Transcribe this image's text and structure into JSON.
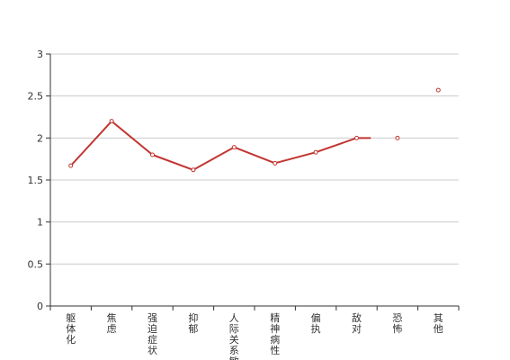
{
  "chart_data": {
    "type": "line",
    "categories": [
      "躯体化",
      "焦虑",
      "强迫症状",
      "抑郁",
      "人际关系敏感",
      "精神病性",
      "偏执",
      "敌对",
      "恐怖",
      "其他"
    ],
    "series": [
      {
        "values": [
          1.67,
          2.2,
          1.8,
          1.62,
          1.89,
          1.7,
          1.83,
          2.0,
          2.0,
          2.57
        ]
      }
    ],
    "ylim": [
      0,
      3
    ],
    "yticks": [
      0,
      0.5,
      1,
      1.5,
      2,
      2.5,
      3
    ],
    "ytick_labels": [
      "0",
      "0.5",
      "1",
      "1.5",
      "2",
      "2.5",
      "3"
    ],
    "grid": "horizontal",
    "line_break_after_index": 7,
    "colors": {
      "line": "#c23531",
      "grid": "#cccccc",
      "axis": "#333333",
      "point_fill": "#ffffff"
    }
  }
}
